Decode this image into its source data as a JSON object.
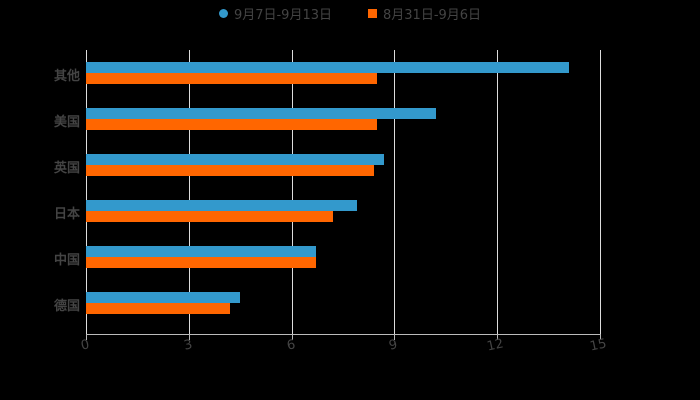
{
  "legend": [
    {
      "label": "9月7日-9月13日",
      "color": "#3399CC",
      "shape": "circle"
    },
    {
      "label": "8月31日-9月6日",
      "color": "#FF6600",
      "shape": "square"
    }
  ],
  "axis": {
    "ticks": [
      "0",
      "3",
      "6",
      "9",
      "12",
      "15"
    ]
  },
  "categories": [
    "其他",
    "美国",
    "英国",
    "日本",
    "中国",
    "德国"
  ],
  "chart_data": {
    "type": "bar",
    "orientation": "horizontal",
    "title": "",
    "xlabel": "",
    "ylabel": "",
    "xlim": [
      0,
      15
    ],
    "xticks": [
      0,
      3,
      6,
      9,
      12,
      15
    ],
    "grid": true,
    "legend_position": "top",
    "categories": [
      "其他",
      "美国",
      "英国",
      "日本",
      "中国",
      "德国"
    ],
    "series": [
      {
        "name": "9月7日-9月13日",
        "color": "#3399CC",
        "values": [
          14.1,
          10.2,
          8.7,
          7.9,
          6.7,
          4.5
        ]
      },
      {
        "name": "8月31日-9月6日",
        "color": "#FF6600",
        "values": [
          8.5,
          8.5,
          8.4,
          7.2,
          6.7,
          4.2
        ]
      }
    ]
  }
}
